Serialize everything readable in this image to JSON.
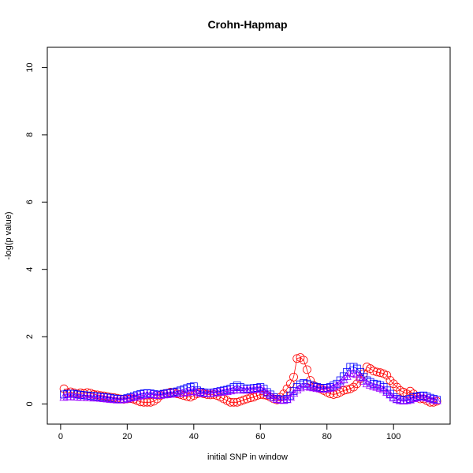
{
  "chart_data": {
    "type": "scatter",
    "title": "Crohn-Hapmap",
    "xlabel": "initial SNP in window",
    "ylabel": "-log(p value)",
    "xlim": [
      -4,
      117
    ],
    "ylim": [
      -0.6,
      10.6
    ],
    "x_ticks": [
      0,
      20,
      40,
      60,
      80,
      100
    ],
    "y_ticks": [
      0,
      2,
      4,
      6,
      8,
      10
    ],
    "grid": false,
    "legend": "none",
    "series": [
      {
        "color": "#ff0000",
        "marker": "circle",
        "x": [
          1,
          2,
          3,
          4,
          5,
          6,
          7,
          8,
          9,
          10,
          11,
          12,
          13,
          14,
          15,
          16,
          17,
          18,
          19,
          20,
          21,
          22,
          23,
          24,
          25,
          26,
          27,
          28,
          29,
          30,
          31,
          32,
          33,
          34,
          35,
          36,
          37,
          38,
          39,
          40,
          41,
          42,
          43,
          44,
          45,
          46,
          47,
          48,
          49,
          50,
          51,
          52,
          53,
          54,
          55,
          56,
          57,
          58,
          59,
          60,
          61,
          62,
          63,
          64,
          65,
          66,
          67,
          68,
          69,
          70,
          71,
          72,
          73,
          74,
          75,
          76,
          77,
          78,
          79,
          80,
          81,
          82,
          83,
          84,
          85,
          86,
          87,
          88,
          89,
          90,
          91,
          92,
          93,
          94,
          95,
          96,
          97,
          98,
          99,
          100,
          101,
          102,
          103,
          104,
          105,
          106,
          107,
          108,
          109,
          110,
          111,
          112,
          113
        ],
        "values": [
          0.45,
          0.33,
          0.36,
          0.33,
          0.3,
          0.33,
          0.31,
          0.34,
          0.32,
          0.28,
          0.27,
          0.25,
          0.24,
          0.22,
          0.2,
          0.19,
          0.17,
          0.15,
          0.14,
          0.15,
          0.16,
          0.14,
          0.1,
          0.06,
          0.05,
          0.05,
          0.05,
          0.08,
          0.15,
          0.25,
          0.3,
          0.32,
          0.35,
          0.33,
          0.3,
          0.28,
          0.25,
          0.22,
          0.2,
          0.25,
          0.3,
          0.33,
          0.3,
          0.28,
          0.27,
          0.28,
          0.25,
          0.2,
          0.15,
          0.1,
          0.05,
          0.05,
          0.05,
          0.08,
          0.12,
          0.15,
          0.18,
          0.2,
          0.25,
          0.28,
          0.27,
          0.25,
          0.2,
          0.15,
          0.12,
          0.2,
          0.3,
          0.45,
          0.6,
          0.8,
          1.35,
          1.38,
          1.3,
          1.02,
          0.7,
          0.55,
          0.5,
          0.45,
          0.4,
          0.35,
          0.3,
          0.28,
          0.3,
          0.35,
          0.4,
          0.42,
          0.45,
          0.5,
          0.6,
          0.75,
          0.9,
          1.1,
          1.05,
          0.98,
          0.95,
          0.93,
          0.9,
          0.85,
          0.7,
          0.6,
          0.5,
          0.4,
          0.35,
          0.3,
          0.38,
          0.3,
          0.2,
          0.15,
          0.15,
          0.1,
          0.05,
          0.05,
          0.08
        ]
      },
      {
        "color": "#0000ff",
        "marker": "square",
        "x": [
          1,
          2,
          3,
          4,
          5,
          6,
          7,
          8,
          9,
          10,
          11,
          12,
          13,
          14,
          15,
          16,
          17,
          18,
          19,
          20,
          21,
          22,
          23,
          24,
          25,
          26,
          27,
          28,
          29,
          30,
          31,
          32,
          33,
          34,
          35,
          36,
          37,
          38,
          39,
          40,
          41,
          42,
          43,
          44,
          45,
          46,
          47,
          48,
          49,
          50,
          51,
          52,
          53,
          54,
          55,
          56,
          57,
          58,
          59,
          60,
          61,
          62,
          63,
          64,
          65,
          66,
          67,
          68,
          69,
          70,
          71,
          72,
          73,
          74,
          75,
          76,
          77,
          78,
          79,
          80,
          81,
          82,
          83,
          84,
          85,
          86,
          87,
          88,
          89,
          90,
          91,
          92,
          93,
          94,
          95,
          96,
          97,
          98,
          99,
          100,
          101,
          102,
          103,
          104,
          105,
          106,
          107,
          108,
          109,
          110,
          111,
          112,
          113
        ],
        "values": [
          0.28,
          0.3,
          0.3,
          0.3,
          0.28,
          0.27,
          0.26,
          0.25,
          0.24,
          0.23,
          0.22,
          0.21,
          0.2,
          0.19,
          0.18,
          0.16,
          0.15,
          0.14,
          0.15,
          0.17,
          0.2,
          0.23,
          0.26,
          0.29,
          0.31,
          0.32,
          0.31,
          0.29,
          0.27,
          0.28,
          0.3,
          0.32,
          0.33,
          0.35,
          0.37,
          0.4,
          0.43,
          0.47,
          0.5,
          0.52,
          0.4,
          0.36,
          0.34,
          0.33,
          0.33,
          0.34,
          0.36,
          0.38,
          0.4,
          0.42,
          0.45,
          0.5,
          0.55,
          0.5,
          0.46,
          0.45,
          0.46,
          0.47,
          0.48,
          0.5,
          0.45,
          0.35,
          0.28,
          0.2,
          0.15,
          0.13,
          0.12,
          0.15,
          0.25,
          0.38,
          0.5,
          0.58,
          0.62,
          0.6,
          0.56,
          0.52,
          0.5,
          0.48,
          0.47,
          0.48,
          0.5,
          0.55,
          0.6,
          0.7,
          0.82,
          0.95,
          1.1,
          1.1,
          1.05,
          0.95,
          0.8,
          0.7,
          0.65,
          0.6,
          0.58,
          0.55,
          0.5,
          0.4,
          0.3,
          0.2,
          0.15,
          0.12,
          0.1,
          0.12,
          0.15,
          0.2,
          0.22,
          0.24,
          0.25,
          0.22,
          0.18,
          0.15,
          0.12
        ]
      },
      {
        "color": "#9a00ff",
        "marker": "triangle",
        "x": [
          1,
          2,
          3,
          4,
          5,
          6,
          7,
          8,
          9,
          10,
          11,
          12,
          13,
          14,
          15,
          16,
          17,
          18,
          19,
          20,
          21,
          22,
          23,
          24,
          25,
          26,
          27,
          28,
          29,
          30,
          31,
          32,
          33,
          34,
          35,
          36,
          37,
          38,
          39,
          40,
          41,
          42,
          43,
          44,
          45,
          46,
          47,
          48,
          49,
          50,
          51,
          52,
          53,
          54,
          55,
          56,
          57,
          58,
          59,
          60,
          61,
          62,
          63,
          64,
          65,
          66,
          67,
          68,
          69,
          70,
          71,
          72,
          73,
          74,
          75,
          76,
          77,
          78,
          79,
          80,
          81,
          82,
          83,
          84,
          85,
          86,
          87,
          88,
          89,
          90,
          91,
          92,
          93,
          94,
          95,
          96,
          97,
          98,
          99,
          100,
          101,
          102,
          103,
          104,
          105,
          106,
          107,
          108,
          109,
          110,
          111,
          112,
          113
        ],
        "values": [
          0.2,
          0.22,
          0.22,
          0.21,
          0.21,
          0.2,
          0.2,
          0.19,
          0.19,
          0.18,
          0.18,
          0.17,
          0.16,
          0.15,
          0.14,
          0.13,
          0.12,
          0.12,
          0.13,
          0.15,
          0.18,
          0.2,
          0.22,
          0.24,
          0.26,
          0.27,
          0.28,
          0.27,
          0.26,
          0.26,
          0.27,
          0.28,
          0.29,
          0.3,
          0.31,
          0.32,
          0.33,
          0.35,
          0.37,
          0.38,
          0.34,
          0.32,
          0.31,
          0.31,
          0.32,
          0.33,
          0.34,
          0.35,
          0.36,
          0.37,
          0.39,
          0.41,
          0.43,
          0.42,
          0.41,
          0.41,
          0.42,
          0.43,
          0.44,
          0.45,
          0.4,
          0.32,
          0.25,
          0.18,
          0.14,
          0.12,
          0.11,
          0.13,
          0.2,
          0.32,
          0.42,
          0.48,
          0.52,
          0.52,
          0.5,
          0.48,
          0.46,
          0.45,
          0.44,
          0.45,
          0.47,
          0.5,
          0.55,
          0.62,
          0.72,
          0.82,
          0.9,
          0.92,
          0.88,
          0.8,
          0.68,
          0.6,
          0.56,
          0.52,
          0.5,
          0.47,
          0.43,
          0.35,
          0.27,
          0.18,
          0.13,
          0.1,
          0.09,
          0.1,
          0.12,
          0.16,
          0.18,
          0.2,
          0.2,
          0.18,
          0.15,
          0.12,
          0.1
        ]
      }
    ]
  }
}
